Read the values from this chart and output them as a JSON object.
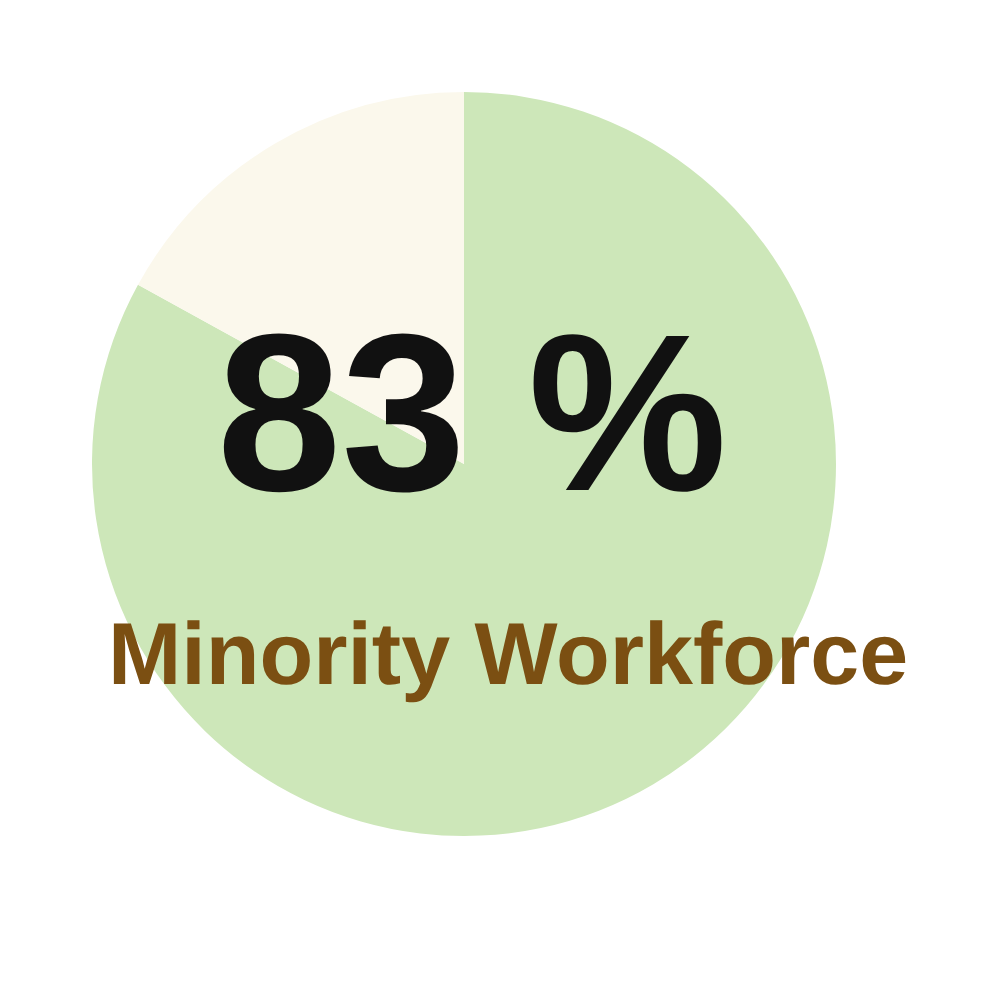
{
  "chart_data": {
    "type": "pie",
    "categories": [
      "Minority Workforce",
      null
    ],
    "values": [
      83,
      17
    ],
    "colors": [
      "#cde7b9",
      "#fbf8ec"
    ],
    "value_labels": [
      "83 %",
      null
    ],
    "legend": false
  }
}
